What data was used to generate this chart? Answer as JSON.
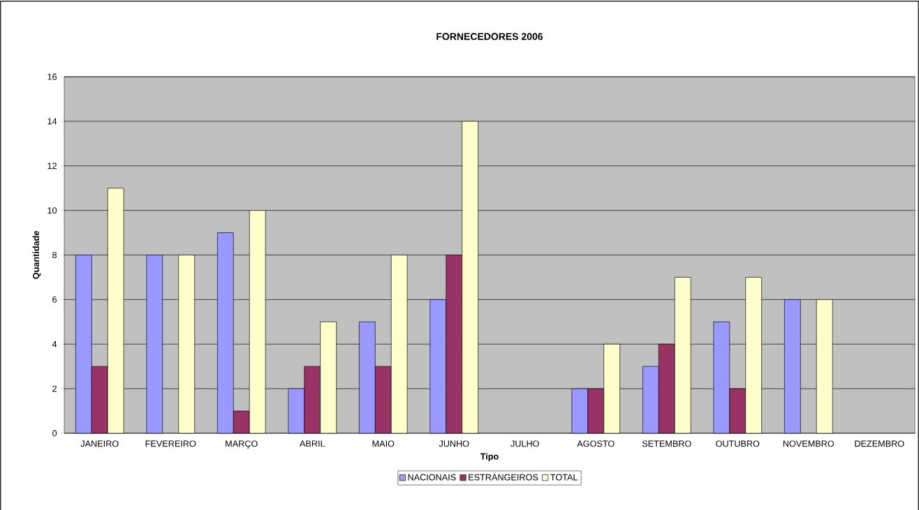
{
  "chart_data": {
    "type": "bar",
    "title": "FORNECEDORES 2006",
    "xlabel": "Tipo",
    "ylabel": "Quantidade",
    "categories": [
      "JANEIRO",
      "FEVEREIRO",
      "MARÇO",
      "ABRIL",
      "MAIO",
      "JUNHO",
      "JULHO",
      "AGOSTO",
      "SETEMBRO",
      "OUTUBRO",
      "NOVEMBRO",
      "DEZEMBRO"
    ],
    "series": [
      {
        "name": "NACIONAIS",
        "color": "#9999ff",
        "values": [
          8,
          8,
          9,
          2,
          5,
          6,
          null,
          2,
          3,
          5,
          6,
          null
        ]
      },
      {
        "name": "ESTRANGEIROS",
        "color": "#993366",
        "values": [
          3,
          null,
          1,
          3,
          3,
          8,
          null,
          2,
          4,
          2,
          null,
          null
        ]
      },
      {
        "name": "TOTAL",
        "color": "#ffffcc",
        "values": [
          11,
          8,
          10,
          5,
          8,
          14,
          null,
          4,
          7,
          7,
          6,
          null
        ]
      }
    ],
    "ylim": [
      0,
      16
    ],
    "yticks": [
      0,
      2,
      4,
      6,
      8,
      10,
      12,
      14,
      16
    ],
    "grid": "y",
    "legend": "bottom"
  }
}
